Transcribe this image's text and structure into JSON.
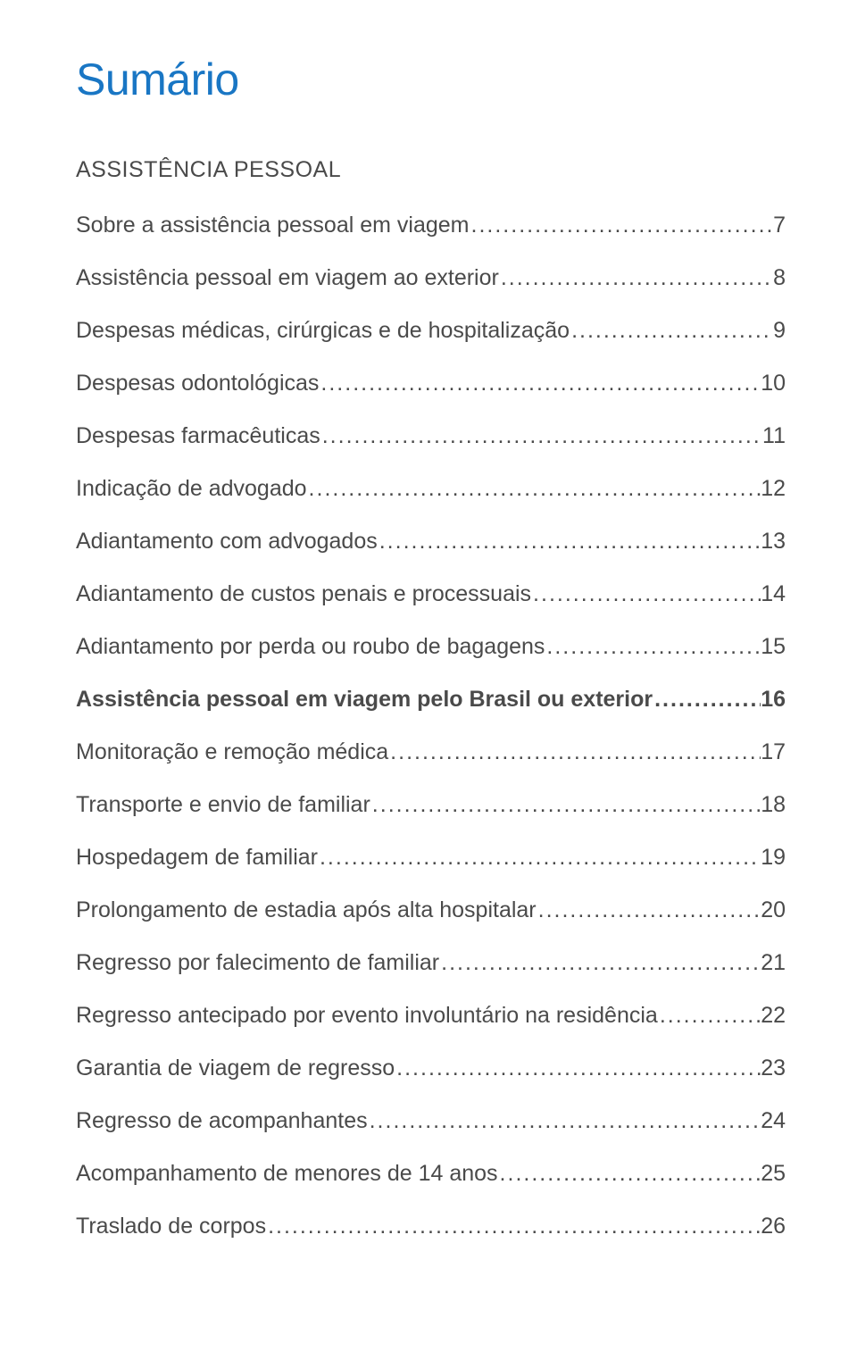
{
  "title": "Sumário",
  "title_color": "#1976c4",
  "text_color": "#4a4a4a",
  "background_color": "#ffffff",
  "title_fontsize": 50,
  "body_fontsize": 25,
  "section_spacing": 24,
  "section_heading": "ASSISTÊNCIA PESSOAL",
  "entries": [
    {
      "label": "Sobre a assistência pessoal em viagem",
      "page": "7",
      "bold": false
    },
    {
      "label": "Assistência pessoal em viagem ao exterior",
      "page": "8",
      "bold": false
    },
    {
      "label": "Despesas médicas, cirúrgicas e de hospitalização",
      "page": "9",
      "bold": false
    },
    {
      "label": "Despesas odontológicas",
      "page": "10",
      "bold": false
    },
    {
      "label": "Despesas farmacêuticas",
      "page": "11",
      "bold": false
    },
    {
      "label": "Indicação de advogado",
      "page": "12",
      "bold": false
    },
    {
      "label": "Adiantamento com advogados",
      "page": "13",
      "bold": false
    },
    {
      "label": "Adiantamento de custos penais e processuais",
      "page": "14",
      "bold": false
    },
    {
      "label": "Adiantamento por perda ou roubo de bagagens",
      "page": "15",
      "bold": false
    },
    {
      "label": "Assistência pessoal em viagem pelo Brasil ou exterior",
      "page": "16",
      "bold": true
    },
    {
      "label": "Monitoração e remoção médica",
      "page": "17",
      "bold": false
    },
    {
      "label": "Transporte e envio de familiar",
      "page": "18",
      "bold": false
    },
    {
      "label": "Hospedagem de familiar",
      "page": "19",
      "bold": false
    },
    {
      "label": "Prolongamento de estadia após alta hospitalar",
      "page": "20",
      "bold": false
    },
    {
      "label": "Regresso por falecimento de familiar",
      "page": "21",
      "bold": false
    },
    {
      "label": "Regresso antecipado por evento involuntário na residência",
      "page": "22",
      "bold": false
    },
    {
      "label": "Garantia de viagem de regresso",
      "page": "23",
      "bold": false
    },
    {
      "label": "Regresso de acompanhantes",
      "page": "24",
      "bold": false
    },
    {
      "label": "Acompanhamento de menores de 14 anos",
      "page": "25",
      "bold": false
    },
    {
      "label": "Traslado de corpos",
      "page": "26",
      "bold": false
    }
  ]
}
